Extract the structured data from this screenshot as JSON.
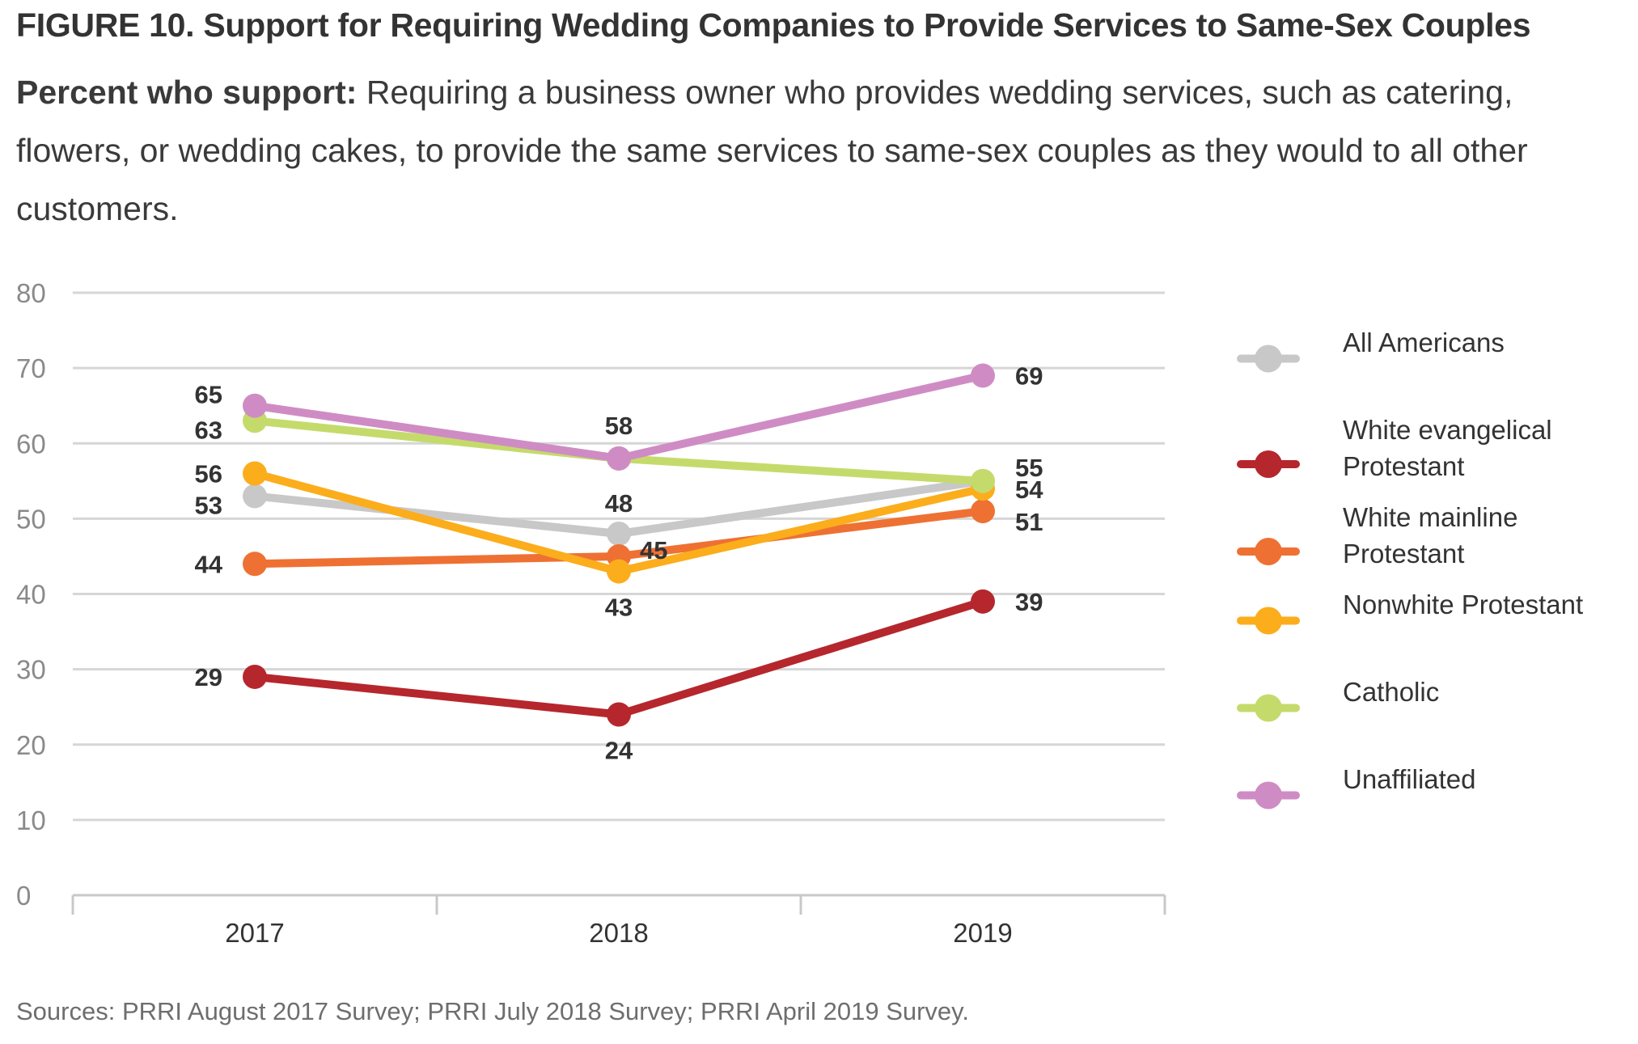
{
  "header": {
    "title": "FIGURE 10.  Support for Requiring Wedding Companies to Provide Services to Same-Sex Couples",
    "subtitle_lead": "Percent who support:",
    "subtitle_text": " Requiring a business owner who provides wedding services, such as catering, flowers, or wedding cakes, to provide the same services to same-sex couples as they would to all other customers."
  },
  "source": "Sources: PRRI August 2017 Survey; PRRI July 2018 Survey; PRRI April 2019 Survey.",
  "chart_data": {
    "type": "line",
    "title": "FIGURE 10.  Support for Requiring Wedding Companies to Provide Services to Same-Sex Couples",
    "xlabel": "",
    "ylabel": "",
    "categories": [
      "2017",
      "2018",
      "2019"
    ],
    "ylim": [
      0,
      80
    ],
    "yticks": [
      0,
      10,
      20,
      30,
      40,
      50,
      60,
      70,
      80
    ],
    "grid": true,
    "legend": "right",
    "series": [
      {
        "name": "All Americans",
        "color": "#c8c8c8",
        "values": [
          53,
          48,
          55
        ],
        "labels": [
          "53",
          "48",
          "55"
        ]
      },
      {
        "name": "White evangelical Protestant",
        "color": "#b5272d",
        "values": [
          29,
          24,
          39
        ],
        "labels": [
          "29",
          "24",
          "39"
        ]
      },
      {
        "name": "White mainline Protestant",
        "color": "#ee7133",
        "values": [
          44,
          45,
          51
        ],
        "labels": [
          "44",
          "45",
          "51"
        ]
      },
      {
        "name": "Nonwhite Protestant",
        "color": "#fbad1c",
        "values": [
          56,
          43,
          54
        ],
        "labels": [
          "56",
          "43",
          "54"
        ]
      },
      {
        "name": "Catholic",
        "color": "#c4db6c",
        "values": [
          63,
          58,
          55
        ],
        "labels": [
          "63",
          "",
          ""
        ]
      },
      {
        "name": "Unaffiliated",
        "color": "#cf8cc4",
        "values": [
          65,
          58,
          69
        ],
        "labels": [
          "65",
          "58",
          "69"
        ]
      }
    ]
  }
}
